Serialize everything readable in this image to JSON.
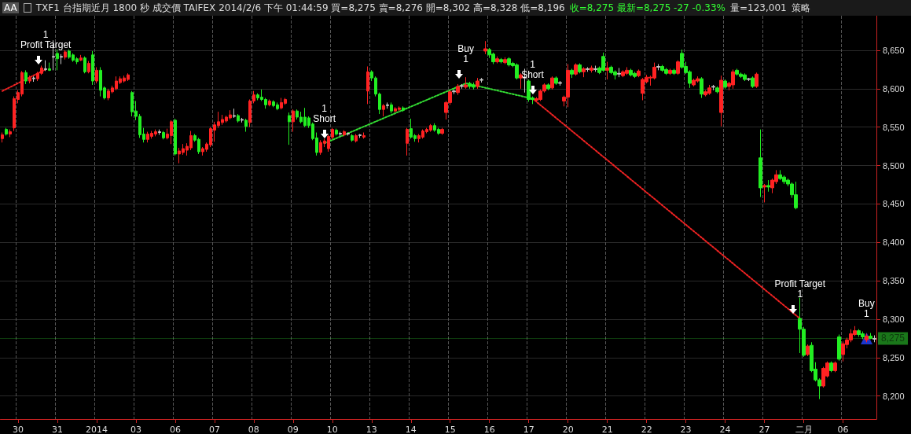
{
  "chart_data": {
    "type": "candlestick",
    "title": "TXF1 台指期近月 1800 秒 成交價 TAIFEX 2014/2/6 下午 01:44:59 買=8,275 賣=8,276 開=8,302 高=8,328 低=8,196",
    "subtitle": "收=8,275 最新=8,275 -27 -0.33%",
    "annotations": [
      "AA",
      "量=123,001",
      "策略",
      {
        "text": "1\nProfit Target",
        "y": 8625
      },
      {
        "text": "1\nShort",
        "y": 8529
      },
      {
        "text": "Buy\n1",
        "y": 8607
      },
      {
        "text": "1\nShort",
        "y": 8587
      },
      {
        "text": "Profit Target\n1",
        "y": 8301
      },
      {
        "text": "Buy\n1",
        "y": 8275
      }
    ],
    "ref_lines": [
      {
        "axis": "y",
        "value": 8275,
        "label": "8,275",
        "color": "#33ee33"
      }
    ],
    "categories": [
      null,
      null,
      null,
      null,
      "30",
      null,
      null,
      null,
      null,
      null,
      null,
      null,
      null,
      null,
      "31",
      null,
      null,
      null,
      null,
      null,
      null,
      null,
      null,
      null,
      "2014",
      null,
      null,
      null,
      null,
      null,
      null,
      null,
      null,
      null,
      "03",
      null,
      null,
      null,
      null,
      null,
      null,
      null,
      null,
      null,
      "06",
      null,
      null,
      null,
      null,
      null,
      null,
      null,
      null,
      null,
      "07",
      null,
      null,
      null,
      null,
      null,
      null,
      null,
      null,
      null,
      "08",
      null,
      null,
      null,
      null,
      null,
      null,
      null,
      null,
      null,
      "09",
      null,
      null,
      null,
      null,
      null,
      null,
      null,
      null,
      null,
      "10",
      null,
      null,
      null,
      null,
      null,
      null,
      null,
      null,
      null,
      "13",
      null,
      null,
      null,
      null,
      null,
      null,
      null,
      null,
      null,
      "14",
      null,
      null,
      null,
      null,
      null,
      null,
      null,
      null,
      null,
      "15",
      null,
      null,
      null,
      null,
      null,
      null,
      null,
      null,
      null,
      "16",
      null,
      null,
      null,
      null,
      null,
      null,
      null,
      null,
      null,
      "17",
      null,
      null,
      null,
      null,
      null,
      null,
      null,
      null,
      null,
      "20",
      null,
      null,
      null,
      null,
      null,
      null,
      null,
      null,
      null,
      "21",
      null,
      null,
      null,
      null,
      null,
      null,
      null,
      null,
      null,
      "22",
      null,
      null,
      null,
      null,
      null,
      null,
      null,
      null,
      null,
      "23",
      null,
      null,
      null,
      null,
      null,
      null,
      null,
      null,
      null,
      "24",
      null,
      null,
      null,
      null,
      null,
      null,
      null,
      null,
      null,
      "27",
      null,
      null,
      null,
      null,
      null,
      null,
      null,
      null,
      null,
      "二月",
      null,
      null,
      null,
      null,
      null,
      null,
      null,
      null,
      null,
      "06",
      null,
      null,
      null,
      null,
      null,
      null,
      null,
      null
    ],
    "ohlc": [
      [
        8535,
        8543,
        8530,
        8540
      ],
      [
        8547,
        8549,
        8539,
        8541
      ],
      [
        8541,
        8547,
        8537,
        8544
      ],
      [
        8549,
        8590,
        8545,
        8587
      ],
      [
        8586,
        8598,
        8581,
        8595
      ],
      [
        8593,
        8623,
        8590,
        8621
      ],
      [
        8621,
        8624,
        8606,
        8610
      ],
      [
        8610,
        8617,
        8607,
        8614
      ],
      [
        8613,
        8616,
        8609,
        8614
      ],
      [
        8613,
        8622,
        8610,
        8620
      ],
      [
        8620,
        8630,
        8618,
        8627
      ],
      [
        8625,
        8637,
        8623,
        8626
      ],
      [
        8626,
        8634,
        8623,
        8624
      ],
      [
        8641,
        8663,
        8624,
        8642
      ],
      [
        8646,
        8651,
        8624,
        8639
      ],
      [
        8641,
        8645,
        8632,
        8642
      ],
      [
        8641,
        8650,
        8638,
        8648
      ],
      [
        8649,
        8651,
        8639,
        8641
      ],
      [
        8644,
        8646,
        8635,
        8637
      ],
      [
        8639,
        8641,
        8632,
        8635
      ],
      [
        8637,
        8644,
        8636,
        8640
      ],
      [
        8640,
        8642,
        8620,
        8622
      ],
      [
        8622,
        8636,
        8620,
        8633
      ],
      [
        8644,
        8649,
        8605,
        8610
      ],
      [
        8610,
        8628,
        8607,
        8624
      ],
      [
        8624,
        8628,
        8590,
        8598
      ],
      [
        8601,
        8603,
        8586,
        8588
      ],
      [
        8588,
        8600,
        8585,
        8597
      ],
      [
        8596,
        8604,
        8594,
        8601
      ],
      [
        8600,
        8616,
        8598,
        8610
      ],
      [
        8608,
        8616,
        8606,
        8613
      ],
      [
        8610,
        8617,
        8608,
        8614
      ],
      [
        8612,
        8620,
        8610,
        8618
      ],
      [
        8595,
        8597,
        8564,
        8570
      ],
      [
        8571,
        8584,
        8559,
        8564
      ],
      [
        8564,
        8567,
        8536,
        8540
      ],
      [
        8541,
        8549,
        8530,
        8534
      ],
      [
        8534,
        8544,
        8530,
        8541
      ],
      [
        8538,
        8545,
        8535,
        8542
      ],
      [
        8541,
        8547,
        8538,
        8544
      ],
      [
        8543,
        8547,
        8540,
        8544
      ],
      [
        8543,
        8545,
        8534,
        8536
      ],
      [
        8536,
        8548,
        8534,
        8541
      ],
      [
        8539,
        8559,
        8528,
        8557
      ],
      [
        8559,
        8561,
        8513,
        8515
      ],
      [
        8515,
        8523,
        8503,
        8519
      ],
      [
        8517,
        8528,
        8514,
        8522
      ],
      [
        8520,
        8529,
        8513,
        8525
      ],
      [
        8523,
        8545,
        8520,
        8539
      ],
      [
        8539,
        8541,
        8531,
        8533
      ],
      [
        8534,
        8536,
        8515,
        8518
      ],
      [
        8518,
        8524,
        8513,
        8522
      ],
      [
        8521,
        8530,
        8518,
        8528
      ],
      [
        8527,
        8550,
        8524,
        8548
      ],
      [
        8546,
        8557,
        8531,
        8553
      ],
      [
        8552,
        8570,
        8549,
        8557
      ],
      [
        8556,
        8566,
        8553,
        8560
      ],
      [
        8558,
        8565,
        8556,
        8563
      ],
      [
        8562,
        8572,
        8560,
        8566
      ],
      [
        8564,
        8574,
        8562,
        8565
      ],
      [
        8565,
        8567,
        8556,
        8558
      ],
      [
        8559,
        8562,
        8556,
        8560
      ],
      [
        8559,
        8561,
        8544,
        8551
      ],
      [
        8556,
        8586,
        8550,
        8584
      ],
      [
        8584,
        8597,
        8581,
        8592
      ],
      [
        8592,
        8594,
        8585,
        8588
      ],
      [
        8589,
        8599,
        8584,
        8586
      ],
      [
        8586,
        8588,
        8574,
        8579
      ],
      [
        8579,
        8586,
        8577,
        8584
      ],
      [
        8583,
        8585,
        8576,
        8578
      ],
      [
        8579,
        8582,
        8572,
        8574
      ],
      [
        8575,
        8588,
        8573,
        8582
      ],
      [
        8581,
        8588,
        8579,
        8586
      ],
      [
        8565,
        8569,
        8527,
        8557
      ],
      [
        8557,
        8573,
        8544,
        8571
      ],
      [
        8571,
        8573,
        8560,
        8563
      ],
      [
        8563,
        8570,
        8555,
        8557
      ],
      [
        8563,
        8575,
        8550,
        8552
      ],
      [
        8562,
        8564,
        8549,
        8552
      ],
      [
        8554,
        8556,
        8533,
        8535
      ],
      [
        8536,
        8543,
        8513,
        8517
      ],
      [
        8517,
        8533,
        8514,
        8530
      ],
      [
        8529,
        8535,
        8524,
        8532
      ],
      [
        8522,
        8540,
        8518,
        8538
      ],
      [
        8537,
        8549,
        8534,
        8547
      ],
      [
        8546,
        8548,
        8539,
        8541
      ],
      [
        8541,
        8544,
        8538,
        8542
      ],
      [
        8540,
        8546,
        8538,
        8544
      ],
      [
        8541,
        8543,
        8539,
        8542
      ],
      [
        8539,
        8541,
        8531,
        8533
      ],
      [
        8532,
        8541,
        8530,
        8539
      ],
      [
        8539,
        8541,
        8536,
        8540
      ],
      [
        8537,
        8543,
        8535,
        8539
      ],
      [
        8597,
        8629,
        8580,
        8622
      ],
      [
        8622,
        8624,
        8610,
        8614
      ],
      [
        8614,
        8616,
        8590,
        8593
      ],
      [
        8593,
        8595,
        8567,
        8573
      ],
      [
        8573,
        8580,
        8564,
        8578
      ],
      [
        8578,
        8582,
        8574,
        8579
      ],
      [
        8579,
        8582,
        8568,
        8571
      ],
      [
        8571,
        8576,
        8569,
        8574
      ],
      [
        8573,
        8577,
        8571,
        8575
      ],
      [
        8575,
        8577,
        8570,
        8572
      ],
      [
        8529,
        8549,
        8513,
        8547
      ],
      [
        8548,
        8561,
        8535,
        8537
      ],
      [
        8539,
        8541,
        8531,
        8535
      ],
      [
        8535,
        8541,
        8530,
        8539
      ],
      [
        8537,
        8547,
        8535,
        8545
      ],
      [
        8544,
        8549,
        8542,
        8547
      ],
      [
        8546,
        8554,
        8544,
        8552
      ],
      [
        8552,
        8555,
        8544,
        8546
      ],
      [
        8547,
        8549,
        8540,
        8542
      ],
      [
        8542,
        8549,
        8540,
        8547
      ],
      [
        8569,
        8584,
        8560,
        8582
      ],
      [
        8582,
        8598,
        8579,
        8596
      ],
      [
        8596,
        8599,
        8593,
        8597
      ],
      [
        8595,
        8606,
        8592,
        8603
      ],
      [
        8603,
        8606,
        8600,
        8604
      ],
      [
        8602,
        8615,
        8600,
        8605
      ],
      [
        8607,
        8609,
        8600,
        8603
      ],
      [
        8605,
        8608,
        8599,
        8602
      ],
      [
        8603,
        8614,
        8600,
        8610
      ],
      [
        8611,
        8614,
        8608,
        8612
      ],
      [
        8649,
        8662,
        8645,
        8652
      ],
      [
        8651,
        8653,
        8640,
        8644
      ],
      [
        8645,
        8647,
        8632,
        8635
      ],
      [
        8635,
        8642,
        8633,
        8639
      ],
      [
        8638,
        8640,
        8633,
        8635
      ],
      [
        8634,
        8641,
        8632,
        8638
      ],
      [
        8639,
        8641,
        8629,
        8631
      ],
      [
        8633,
        8635,
        8628,
        8630
      ],
      [
        8631,
        8633,
        8612,
        8614
      ],
      [
        8614,
        8620,
        8600,
        8618
      ],
      [
        8614,
        8626,
        8595,
        8615
      ],
      [
        8610,
        8612,
        8583,
        8586
      ],
      [
        8588,
        8590,
        8580,
        8586
      ],
      [
        8585,
        8589,
        8583,
        8587
      ],
      [
        8586,
        8599,
        8584,
        8597
      ],
      [
        8597,
        8607,
        8595,
        8605
      ],
      [
        8605,
        8607,
        8598,
        8600
      ],
      [
        8601,
        8616,
        8599,
        8614
      ],
      [
        8614,
        8616,
        8605,
        8607
      ],
      [
        8607,
        8610,
        8604,
        8608
      ],
      [
        8584,
        8591,
        8577,
        8589
      ],
      [
        8589,
        8632,
        8576,
        8624
      ],
      [
        8624,
        8626,
        8614,
        8619
      ],
      [
        8619,
        8633,
        8617,
        8631
      ],
      [
        8631,
        8633,
        8620,
        8622
      ],
      [
        8622,
        8628,
        8615,
        8626
      ],
      [
        8625,
        8628,
        8622,
        8626
      ],
      [
        8624,
        8630,
        8621,
        8627
      ],
      [
        8625,
        8630,
        8622,
        8626
      ],
      [
        8627,
        8629,
        8619,
        8621
      ],
      [
        8642,
        8647,
        8622,
        8624
      ],
      [
        8624,
        8635,
        8612,
        8627
      ],
      [
        8628,
        8630,
        8619,
        8621
      ],
      [
        8622,
        8624,
        8612,
        8618
      ],
      [
        8619,
        8627,
        8615,
        8620
      ],
      [
        8617,
        8624,
        8615,
        8622
      ],
      [
        8620,
        8628,
        8618,
        8624
      ],
      [
        8624,
        8626,
        8616,
        8618
      ],
      [
        8620,
        8622,
        8614,
        8616
      ],
      [
        8617,
        8625,
        8615,
        8623
      ],
      [
        8594,
        8614,
        8585,
        8612
      ],
      [
        8609,
        8618,
        8607,
        8615
      ],
      [
        8614,
        8617,
        8604,
        8615
      ],
      [
        8614,
        8634,
        8612,
        8628
      ],
      [
        8628,
        8632,
        8624,
        8629
      ],
      [
        8629,
        8631,
        8622,
        8624
      ],
      [
        8625,
        8627,
        8618,
        8620
      ],
      [
        8620,
        8626,
        8618,
        8624
      ],
      [
        8624,
        8626,
        8618,
        8620
      ],
      [
        8620,
        8637,
        8618,
        8635
      ],
      [
        8646,
        8651,
        8626,
        8628
      ],
      [
        8629,
        8635,
        8619,
        8621
      ],
      [
        8622,
        8624,
        8601,
        8607
      ],
      [
        8605,
        8613,
        8603,
        8611
      ],
      [
        8610,
        8616,
        8608,
        8613
      ],
      [
        8613,
        8615,
        8588,
        8593
      ],
      [
        8592,
        8598,
        8590,
        8596
      ],
      [
        8594,
        8605,
        8592,
        8601
      ],
      [
        8602,
        8605,
        8598,
        8603
      ],
      [
        8601,
        8603,
        8594,
        8596
      ],
      [
        8569,
        8617,
        8551,
        8611
      ],
      [
        8610,
        8612,
        8600,
        8602
      ],
      [
        8603,
        8609,
        8598,
        8607
      ],
      [
        8605,
        8625,
        8600,
        8622
      ],
      [
        8624,
        8626,
        8617,
        8619
      ],
      [
        8619,
        8621,
        8614,
        8616
      ],
      [
        8618,
        8620,
        8610,
        8612
      ],
      [
        8612,
        8614,
        8610,
        8613
      ],
      [
        8614,
        8616,
        8601,
        8603
      ],
      [
        8603,
        8621,
        8601,
        8619
      ],
      [
        8510,
        8547,
        8459,
        8471
      ],
      [
        8472,
        8476,
        8452,
        8474
      ],
      [
        8474,
        8481,
        8466,
        8472
      ],
      [
        8471,
        8483,
        8464,
        8481
      ],
      [
        8479,
        8494,
        8476,
        8488
      ],
      [
        8488,
        8494,
        8481,
        8483
      ],
      [
        8485,
        8487,
        8476,
        8479
      ],
      [
        8481,
        8483,
        8473,
        8476
      ],
      [
        8476,
        8478,
        8458,
        8462
      ],
      [
        8462,
        8479,
        8443,
        8445
      ],
      [
        8301,
        8328,
        8256,
        8287
      ],
      [
        8287,
        8290,
        8251,
        8253
      ],
      [
        8254,
        8267,
        8252,
        8265
      ],
      [
        8266,
        8270,
        8231,
        8233
      ],
      [
        8235,
        8244,
        8219,
        8221
      ],
      [
        8221,
        8223,
        8196,
        8213
      ],
      [
        8213,
        8238,
        8211,
        8236
      ],
      [
        8226,
        8245,
        8224,
        8243
      ],
      [
        8243,
        8245,
        8231,
        8233
      ],
      [
        8233,
        8245,
        8231,
        8243
      ],
      [
        8277,
        8280,
        8246,
        8248
      ],
      [
        8254,
        8271,
        8245,
        8268
      ],
      [
        8267,
        8276,
        8262,
        8273
      ],
      [
        8273,
        8287,
        8270,
        8281
      ],
      [
        8280,
        8291,
        8278,
        8285
      ],
      [
        8285,
        8287,
        8277,
        8280
      ],
      [
        8281,
        8284,
        8274,
        8277
      ],
      [
        8273,
        8281,
        8270,
        8278
      ],
      [
        8278,
        8282,
        8274,
        8275
      ],
      [
        8274,
        8279,
        8270,
        8275
      ]
    ],
    "colors": [
      "#ff2222",
      "#22ee22",
      "#ff2222",
      "#ff2222",
      "#ff2222",
      "#ff2222",
      "#22ee22",
      "#ff2222",
      "#c8c8c8",
      "#ff2222",
      "#ff2222",
      "#c8c8c8",
      "#22ee22",
      "#c8c8c8",
      "#22ee22",
      "#c8c8c8",
      "#ff2222",
      "#22ee22",
      "#22ee22",
      "#22ee22",
      "#ff2222",
      "#22ee22",
      "#ff2222",
      "#22ee22",
      "#ff2222",
      "#22ee22",
      "#22ee22",
      "#ff2222",
      "#ff2222",
      "#ff2222",
      "#ff2222",
      "#ff2222",
      "#ff2222",
      "#22ee22",
      "#22ee22",
      "#22ee22",
      "#22ee22",
      "#ff2222",
      "#ff2222",
      "#ff2222",
      "#c8c8c8",
      "#22ee22",
      "#ff2222",
      "#ff2222",
      "#22ee22",
      "#ff2222",
      "#ff2222",
      "#ff2222",
      "#ff2222",
      "#22ee22",
      "#22ee22",
      "#ff2222",
      "#ff2222",
      "#ff2222",
      "#ff2222",
      "#ff2222",
      "#ff2222",
      "#ff2222",
      "#ff2222",
      "#c8c8c8",
      "#22ee22",
      "#c8c8c8",
      "#22ee22",
      "#ff2222",
      "#ff2222",
      "#22ee22",
      "#22ee22",
      "#22ee22",
      "#ff2222",
      "#22ee22",
      "#22ee22",
      "#ff2222",
      "#ff2222",
      "#22ee22",
      "#ff2222",
      "#22ee22",
      "#22ee22",
      "#22ee22",
      "#22ee22",
      "#22ee22",
      "#22ee22",
      "#ff2222",
      "#ff2222",
      "#ff2222",
      "#ff2222",
      "#22ee22",
      "#c8c8c8",
      "#ff2222",
      "#c8c8c8",
      "#22ee22",
      "#ff2222",
      "#c8c8c8",
      "#ff2222",
      "#ff2222",
      "#22ee22",
      "#22ee22",
      "#22ee22",
      "#ff2222",
      "#c8c8c8",
      "#22ee22",
      "#ff2222",
      "#ff2222",
      "#22ee22",
      "#ff2222",
      "#22ee22",
      "#22ee22",
      "#ff2222",
      "#ff2222",
      "#ff2222",
      "#ff2222",
      "#22ee22",
      "#22ee22",
      "#ff2222",
      "#ff2222",
      "#ff2222",
      "#c8c8c8",
      "#ff2222",
      "#c8c8c8",
      "#ff2222",
      "#22ee22",
      "#22ee22",
      "#ff2222",
      "#c8c8c8",
      "#ff2222",
      "#22ee22",
      "#22ee22",
      "#ff2222",
      "#22ee22",
      "#ff2222",
      "#22ee22",
      "#22ee22",
      "#22ee22",
      "#ff2222",
      "#c8c8c8",
      "#22ee22",
      "#22ee22",
      "#ff2222",
      "#ff2222",
      "#ff2222",
      "#22ee22",
      "#ff2222",
      "#22ee22",
      "#c8c8c8",
      "#ff2222",
      "#ff2222",
      "#22ee22",
      "#ff2222",
      "#22ee22",
      "#ff2222",
      "#c8c8c8",
      "#ff2222",
      "#c8c8c8",
      "#22ee22",
      "#22ee22",
      "#ff2222",
      "#22ee22",
      "#22ee22",
      "#c8c8c8",
      "#ff2222",
      "#ff2222",
      "#22ee22",
      "#22ee22",
      "#ff2222",
      "#ff2222",
      "#ff2222",
      "#ff2222",
      "#ff2222",
      "#c8c8c8",
      "#22ee22",
      "#22ee22",
      "#ff2222",
      "#22ee22",
      "#ff2222",
      "#22ee22",
      "#22ee22",
      "#22ee22",
      "#ff2222",
      "#ff2222",
      "#22ee22",
      "#ff2222",
      "#ff2222",
      "#c8c8c8",
      "#22ee22",
      "#ff2222",
      "#22ee22",
      "#ff2222",
      "#ff2222",
      "#22ee22",
      "#22ee22",
      "#22ee22",
      "#c8c8c8",
      "#22ee22",
      "#ff2222",
      "#22ee22",
      "#ff2222",
      "#22ee22",
      "#ff2222",
      "#ff2222",
      "#22ee22",
      "#22ee22",
      "#22ee22",
      "#22ee22",
      "#22ee22",
      "#22ee22",
      "#22ee22",
      "#ff2222",
      "#22ee22",
      "#22ee22",
      "#22ee22",
      "#ff2222",
      "#ff2222",
      "#22ee22",
      "#ff2222",
      "#22ee22",
      "#ff2222",
      "#ff2222",
      "#ff2222",
      "#ff2222",
      "#22ee22",
      "#22ee22",
      "#ff2222",
      "#22ee22",
      "#c8c8c8"
    ],
    "series": [
      {
        "type": "line",
        "color": "#ee2222",
        "values": [
          8597,
          null,
          null,
          null,
          null,
          null,
          null,
          null,
          null,
          null,
          null,
          8625,
          null,
          null,
          null,
          null,
          null,
          null,
          null,
          null,
          null,
          null,
          null,
          null,
          null,
          null,
          null,
          null,
          null,
          null,
          null,
          null,
          null,
          null,
          null,
          null,
          null,
          null,
          null,
          null,
          null,
          null,
          null,
          null,
          null,
          null,
          null,
          null,
          null,
          null,
          null,
          null,
          null,
          null,
          null,
          null,
          null,
          null,
          null,
          null,
          null,
          null,
          null,
          null,
          null,
          null,
          null,
          null,
          null,
          null,
          null,
          null,
          null,
          null,
          null,
          null,
          null,
          null,
          null,
          null,
          null,
          null,
          null,
          null,
          null,
          null,
          null,
          null,
          null,
          null,
          null,
          null,
          null,
          null,
          null,
          null,
          null,
          null,
          null,
          null,
          null,
          null,
          null,
          null,
          null,
          null,
          null,
          null,
          null,
          null,
          null,
          null,
          null,
          null,
          null,
          null,
          null,
          null,
          null,
          null,
          null,
          null,
          null,
          null,
          null,
          null,
          null,
          null,
          null,
          null,
          null,
          null,
          null,
          null,
          null,
          null,
          null,
          null,
          null,
          null,
          null,
          null,
          null,
          null,
          null,
          null,
          null,
          null,
          null,
          null,
          null,
          null,
          null,
          null,
          null,
          null,
          null,
          null,
          null,
          null,
          null,
          null,
          null,
          null,
          null,
          null,
          null,
          null,
          null,
          null,
          null,
          null,
          null,
          null,
          null,
          null,
          null,
          null,
          null,
          null,
          null,
          null,
          null,
          null,
          null,
          null,
          null,
          null,
          null,
          null,
          null,
          null,
          null,
          null,
          null,
          null,
          null,
          null,
          null,
          null,
          null,
          null,
          null,
          null,
          null,
          null,
          null,
          null,
          null,
          null,
          null,
          null,
          null,
          null,
          null,
          null,
          null,
          null,
          null,
          null,
          null,
          null,
          null
        ]
      },
      {
        "type": "line",
        "color": "#33dd33",
        "values": [
          null,
          null,
          null,
          null,
          null,
          null,
          null,
          null,
          null,
          null,
          null,
          null,
          null,
          null,
          null,
          null,
          null,
          null,
          null,
          null,
          null,
          null,
          null,
          null,
          null,
          null,
          null,
          null,
          null,
          null,
          null,
          null,
          null,
          null,
          null,
          null,
          null,
          null,
          null,
          null,
          null,
          null,
          null,
          null,
          null,
          null,
          null,
          null,
          null,
          null,
          null,
          null,
          null,
          null,
          null,
          null,
          null,
          null,
          null,
          null,
          null,
          null,
          null,
          null,
          null,
          null,
          null,
          null,
          null,
          null,
          null,
          null,
          null,
          null,
          null,
          null,
          null,
          null,
          null,
          null,
          null,
          null,
          8529,
          null,
          null,
          null,
          null,
          null,
          null,
          null,
          null,
          null,
          null,
          null,
          null,
          null,
          null,
          null,
          null,
          null,
          null,
          null,
          null,
          null,
          null,
          null,
          null,
          null,
          null,
          null,
          null,
          null,
          null,
          null,
          null,
          null,
          null,
          null,
          8607,
          null,
          null,
          null,
          null,
          null,
          null,
          null,
          null,
          null,
          null,
          null,
          null,
          null,
          null,
          null,
          null,
          8587,
          null,
          null,
          null,
          null,
          null,
          null,
          null,
          null,
          null,
          null,
          null,
          null,
          null,
          null,
          null,
          null,
          null,
          null,
          null,
          null,
          null,
          null,
          null,
          null,
          null,
          null,
          null,
          null,
          null,
          null,
          null,
          null,
          null,
          null,
          null,
          null,
          null,
          null,
          null,
          null,
          null,
          null,
          null,
          null,
          null,
          null,
          null,
          null,
          null,
          null,
          null,
          null,
          null,
          null,
          null,
          null,
          null,
          null,
          null,
          null,
          null,
          null,
          null,
          null,
          null,
          null,
          null,
          null,
          null,
          null,
          null,
          null,
          null,
          null,
          null,
          null,
          null,
          null,
          null,
          null,
          null,
          null,
          null,
          null,
          null,
          null,
          null
        ]
      },
      {
        "type": "line",
        "color": "#ee2222",
        "values": [
          null,
          null,
          null,
          null,
          null,
          null,
          null,
          null,
          null,
          null,
          null,
          null,
          null,
          null,
          null,
          null,
          null,
          null,
          null,
          null,
          null,
          null,
          null,
          null,
          null,
          null,
          null,
          null,
          null,
          null,
          null,
          null,
          null,
          null,
          null,
          null,
          null,
          null,
          null,
          null,
          null,
          null,
          null,
          null,
          null,
          null,
          null,
          null,
          null,
          null,
          null,
          null,
          null,
          null,
          null,
          null,
          null,
          null,
          null,
          null,
          null,
          null,
          null,
          null,
          null,
          null,
          null,
          null,
          null,
          null,
          null,
          null,
          null,
          null,
          null,
          null,
          null,
          null,
          null,
          null,
          null,
          null,
          null,
          null,
          null,
          null,
          null,
          null,
          null,
          null,
          null,
          null,
          null,
          null,
          null,
          null,
          null,
          null,
          null,
          null,
          null,
          null,
          null,
          null,
          null,
          null,
          null,
          null,
          null,
          null,
          null,
          null,
          null,
          null,
          null,
          null,
          null,
          null,
          null,
          null,
          null,
          null,
          null,
          null,
          null,
          null,
          null,
          null,
          null,
          null,
          null,
          null,
          null,
          null,
          null,
          8587,
          null,
          null,
          null,
          null,
          null,
          null,
          null,
          null,
          null,
          null,
          null,
          null,
          null,
          null,
          null,
          null,
          null,
          null,
          null,
          null,
          null,
          null,
          null,
          null,
          null,
          null,
          null,
          null,
          null,
          null,
          null,
          null,
          null,
          null,
          null,
          null,
          null,
          null,
          null,
          null,
          null,
          null,
          null,
          null,
          null,
          null,
          null,
          null,
          null,
          null,
          null,
          null,
          null,
          null,
          null,
          null,
          null,
          null,
          null,
          null,
          null,
          null,
          null,
          null,
          null,
          null,
          null,
          8301,
          null,
          null,
          null,
          null,
          null,
          null,
          null,
          null,
          null,
          null,
          null,
          null,
          null,
          null,
          null,
          null,
          null,
          null,
          null
        ]
      },
      {
        "type": "scatter",
        "color": "#2244ff",
        "marker": "triangle",
        "values": [
          null,
          null,
          null,
          null,
          null,
          null,
          null,
          null,
          null,
          null,
          null,
          null,
          null,
          null,
          null,
          null,
          null,
          null,
          null,
          null,
          null,
          null,
          null,
          null,
          null,
          null,
          null,
          null,
          null,
          null,
          null,
          null,
          null,
          null,
          null,
          null,
          null,
          null,
          null,
          null,
          null,
          null,
          null,
          null,
          null,
          null,
          null,
          null,
          null,
          null,
          null,
          null,
          null,
          null,
          null,
          null,
          null,
          null,
          null,
          null,
          null,
          null,
          null,
          null,
          null,
          null,
          null,
          null,
          null,
          null,
          null,
          null,
          null,
          null,
          null,
          null,
          null,
          null,
          null,
          null,
          null,
          null,
          null,
          null,
          null,
          null,
          null,
          null,
          null,
          null,
          null,
          null,
          null,
          null,
          null,
          null,
          null,
          null,
          null,
          null,
          null,
          null,
          null,
          null,
          null,
          null,
          null,
          null,
          null,
          null,
          null,
          null,
          null,
          null,
          null,
          null,
          null,
          null,
          null,
          null,
          null,
          null,
          null,
          null,
          null,
          null,
          null,
          null,
          null,
          null,
          null,
          null,
          null,
          null,
          null,
          null,
          null,
          null,
          null,
          null,
          null,
          null,
          null,
          null,
          null,
          null,
          null,
          null,
          null,
          null,
          null,
          null,
          null,
          null,
          null,
          null,
          null,
          null,
          null,
          null,
          null,
          null,
          null,
          null,
          null,
          null,
          null,
          null,
          null,
          null,
          null,
          null,
          null,
          null,
          null,
          null,
          null,
          null,
          null,
          null,
          null,
          null,
          null,
          null,
          null,
          null,
          null,
          null,
          null,
          null,
          null,
          null,
          null,
          null,
          null,
          null,
          null,
          null,
          null,
          null,
          null,
          null,
          null,
          null,
          null,
          null,
          null,
          null,
          null,
          null,
          null,
          null,
          null,
          null,
          null,
          null,
          null,
          null,
          null,
          null,
          8275,
          null,
          null
        ]
      }
    ],
    "line_style": "dotted",
    "marker": "none",
    "ylim": [
      8170,
      8695
    ],
    "yticks": [
      {
        "value": 8200,
        "label": "8,200"
      },
      {
        "value": 8250,
        "label": "8,250"
      },
      {
        "value": 8300,
        "label": "8,300"
      },
      {
        "value": 8350,
        "label": "8,350"
      },
      {
        "value": 8400,
        "label": "8,400"
      },
      {
        "value": 8450,
        "label": "8,450"
      },
      {
        "value": 8500,
        "label": "8,500"
      },
      {
        "value": 8550,
        "label": "8,550"
      },
      {
        "value": 8600,
        "label": "8,600"
      },
      {
        "value": 8650,
        "label": "8,650"
      }
    ],
    "grid": true
  }
}
